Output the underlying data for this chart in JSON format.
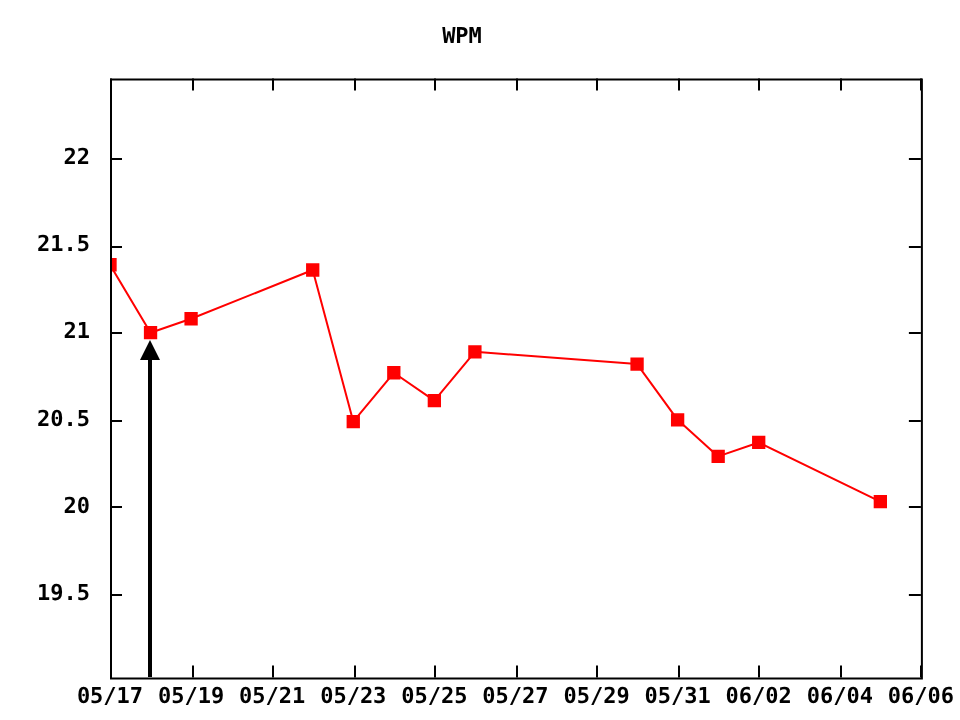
{
  "chart_data": {
    "type": "line",
    "title": "WPM",
    "x": [
      "--05-17",
      "--05-18",
      "--05-19",
      "--05-22",
      "--05-23",
      "--05-24",
      "--05-25",
      "--05-26",
      "--05-30",
      "--05-31",
      "--06-01",
      "--06-02",
      "--06-05"
    ],
    "series": [
      {
        "color": "#ff0000",
        "values": [
          21.39,
          21.0,
          21.08,
          21.36,
          20.49,
          20.77,
          20.61,
          20.89,
          20.82,
          20.5,
          20.29,
          20.37,
          20.03
        ]
      }
    ],
    "xlim": [
      "--05-17",
      "--06-06"
    ],
    "xticks": [
      {
        "value": "--05-17",
        "label": "05/17"
      },
      {
        "value": "--05-19",
        "label": "05/19"
      },
      {
        "value": "--05-21",
        "label": "05/21"
      },
      {
        "value": "--05-23",
        "label": "05/23"
      },
      {
        "value": "--05-25",
        "label": "05/25"
      },
      {
        "value": "--05-27",
        "label": "05/27"
      },
      {
        "value": "--05-29",
        "label": "05/29"
      },
      {
        "value": "--05-31",
        "label": "05/31"
      },
      {
        "value": "--06-02",
        "label": "06/02"
      },
      {
        "value": "--06-04",
        "label": "06/04"
      },
      {
        "value": "--06-06",
        "label": "06/06"
      }
    ],
    "ylim": [
      19.02,
      22.46
    ],
    "yticks": [
      19.5,
      20,
      20.5,
      21,
      21.5,
      22
    ],
    "grid": false,
    "legend": false,
    "marker": "square",
    "line_style": "solid",
    "ref_lines": [
      {
        "axis": "x",
        "value": "--05-18",
        "color": "#000000"
      }
    ]
  }
}
